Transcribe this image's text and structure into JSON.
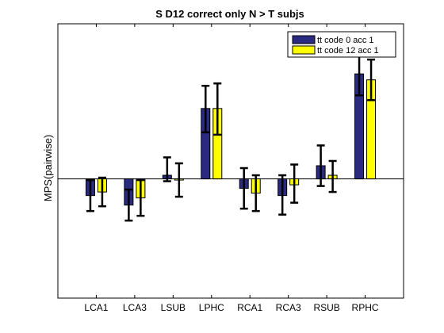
{
  "chart_data": {
    "type": "bar",
    "title": "S D12 correct only N > T subjs",
    "xlabel": "",
    "ylabel": "MPS(pairwise)",
    "categories": [
      "LCA1",
      "LCA3",
      "LSUB",
      "LPHC",
      "RCA1",
      "RCA3",
      "RSUB",
      "RPHC"
    ],
    "ylim": [
      -1.0,
      1.3
    ],
    "grid": false,
    "legend_position": "top-right",
    "zero_line": true,
    "series": [
      {
        "name": "tt code 0 acc 1",
        "color": "#2a2a80",
        "values": [
          -0.14,
          -0.22,
          0.03,
          0.59,
          -0.08,
          -0.14,
          0.11,
          0.88
        ],
        "err_low": [
          -0.27,
          -0.35,
          -0.02,
          0.39,
          -0.25,
          -0.3,
          -0.06,
          0.7
        ],
        "err_high": [
          -0.01,
          -0.09,
          0.18,
          0.78,
          0.09,
          0.03,
          0.28,
          1.06
        ]
      },
      {
        "name": "tt code 12 acc 1",
        "color": "#ffff00",
        "values": [
          -0.11,
          -0.16,
          -0.01,
          0.59,
          -0.12,
          -0.05,
          0.03,
          0.83
        ],
        "err_low": [
          -0.23,
          -0.31,
          -0.15,
          0.37,
          -0.27,
          -0.2,
          -0.11,
          0.66
        ],
        "err_high": [
          0.01,
          -0.01,
          0.13,
          0.8,
          0.03,
          0.12,
          0.15,
          1.0
        ]
      }
    ]
  }
}
